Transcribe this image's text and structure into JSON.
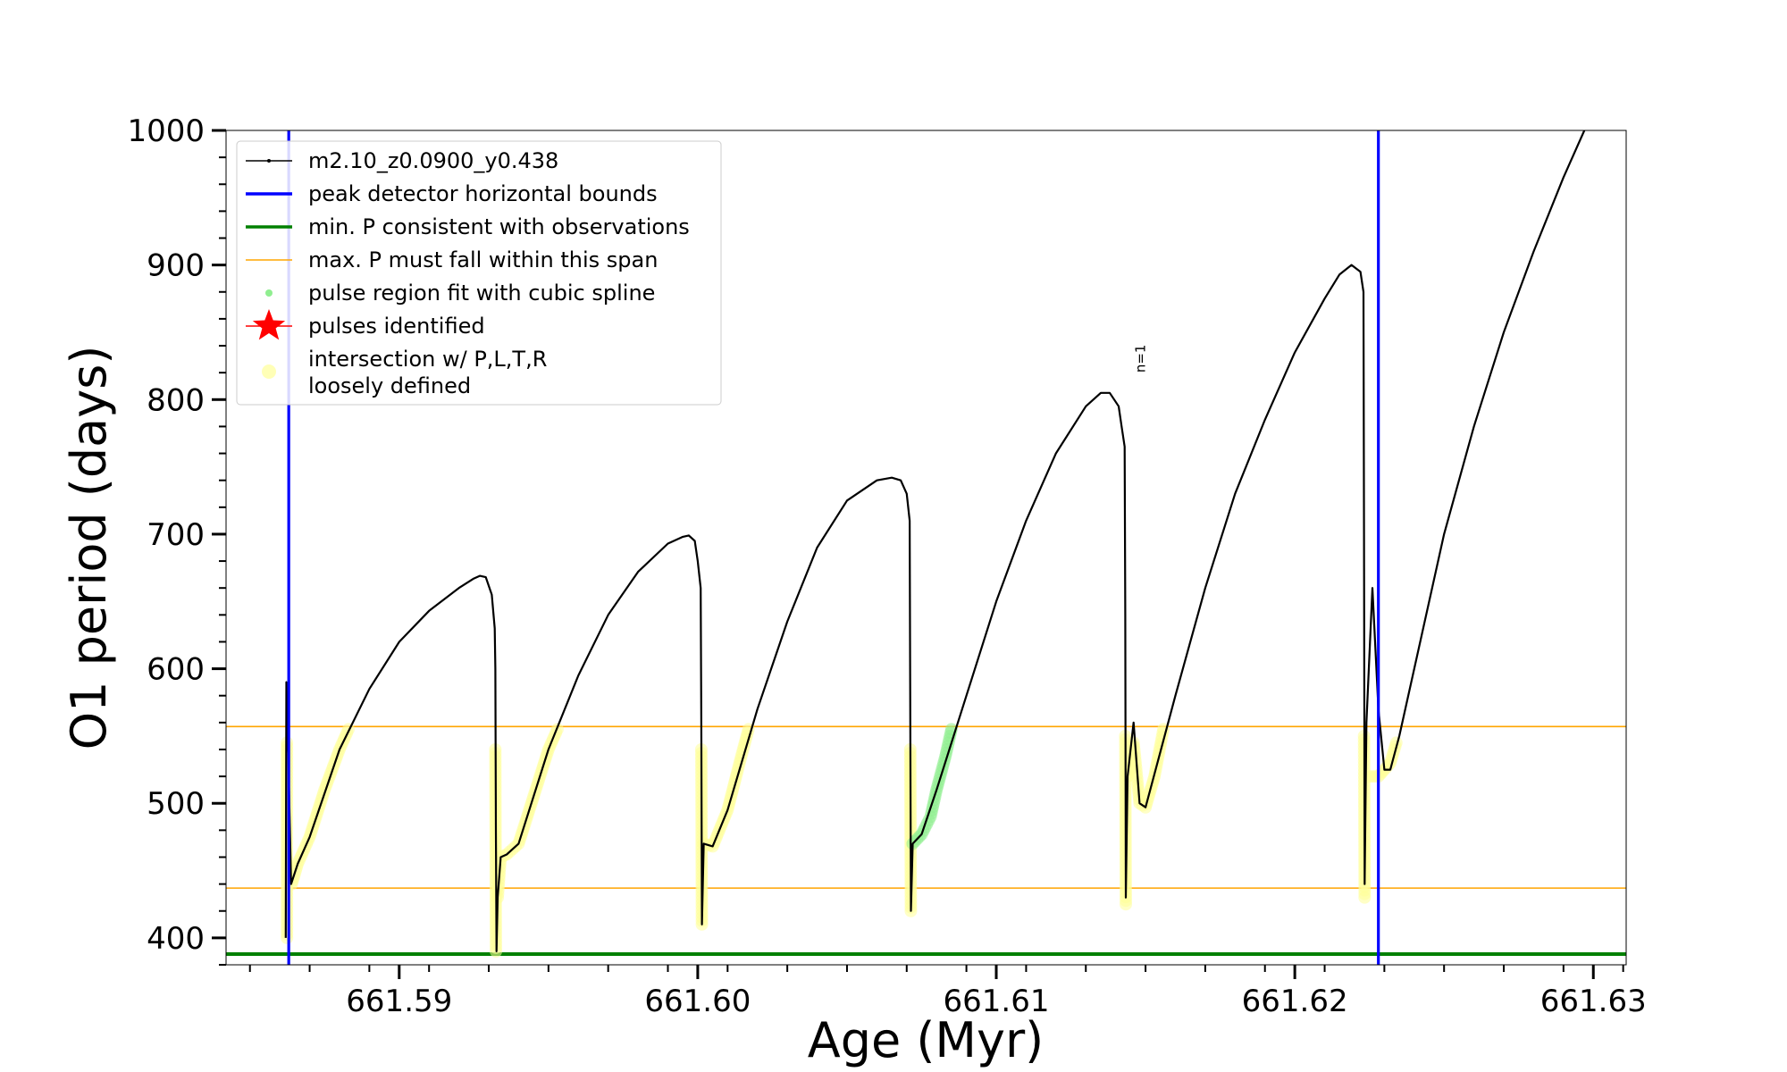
{
  "chart_data": {
    "type": "line",
    "xlabel": "Age (Myr)",
    "ylabel": "O1 period (days)",
    "xlim": [
      661.5842,
      661.6311
    ],
    "ylim": [
      380,
      1000
    ],
    "x_ticks": [
      661.59,
      661.6,
      661.61,
      661.62,
      661.63
    ],
    "x_tick_labels": [
      "661.59",
      "661.60",
      "661.61",
      "661.62",
      "661.63"
    ],
    "y_ticks": [
      400,
      500,
      600,
      700,
      800,
      900,
      1000
    ],
    "y_tick_labels": [
      "400",
      "500",
      "600",
      "700",
      "800",
      "900",
      "1000"
    ],
    "grid": false,
    "legend_location": "upper left",
    "legend": [
      {
        "label": "m2.10_z0.0900_y0.438",
        "kind": "line-marker",
        "color": "#000000"
      },
      {
        "label": "peak detector horizontal bounds",
        "kind": "line",
        "color": "#0000ff"
      },
      {
        "label": "min. P consistent with observations",
        "kind": "line",
        "color": "#008000"
      },
      {
        "label": "max. P must fall within this span",
        "kind": "thin-line",
        "color": "#ffa500"
      },
      {
        "label": "pulse region fit with cubic spline",
        "kind": "dot",
        "color": "#90ee90"
      },
      {
        "label": "pulses identified",
        "kind": "star",
        "color": "#ff0000"
      },
      {
        "label": "intersection w/ P,L,T,R",
        "label2": "loosely defined",
        "kind": "circle",
        "color": "#ffff99"
      }
    ],
    "vertical_lines": {
      "x": [
        661.5863,
        661.6228
      ],
      "color": "#0000ff"
    },
    "horizontal_lines": [
      {
        "y": 388,
        "color": "#008000"
      },
      {
        "y": 437,
        "color": "#ffa500"
      },
      {
        "y": 557,
        "color": "#ffa500"
      }
    ],
    "annotation": {
      "text": "n=1",
      "x": 661.6148,
      "y": 820
    },
    "series": [
      {
        "color": "#000000",
        "points": [
          [
            661.5862,
            400
          ],
          [
            661.58622,
            590
          ],
          [
            661.58628,
            540
          ],
          [
            661.58638,
            440
          ],
          [
            661.5866,
            455
          ],
          [
            661.587,
            475
          ],
          [
            661.588,
            540
          ],
          [
            661.589,
            585
          ],
          [
            661.59,
            620
          ],
          [
            661.591,
            643
          ],
          [
            661.592,
            660
          ],
          [
            661.5925,
            667
          ],
          [
            661.5927,
            669
          ],
          [
            661.5929,
            668
          ],
          [
            661.5931,
            655
          ],
          [
            661.5932,
            630
          ],
          [
            661.59322,
            600
          ],
          [
            661.59324,
            480
          ],
          [
            661.59326,
            390
          ],
          [
            661.5933,
            430
          ],
          [
            661.5934,
            460
          ],
          [
            661.5936,
            462
          ],
          [
            661.594,
            470
          ],
          [
            661.595,
            540
          ],
          [
            661.596,
            595
          ],
          [
            661.597,
            640
          ],
          [
            661.598,
            672
          ],
          [
            661.599,
            693
          ],
          [
            661.5995,
            698
          ],
          [
            661.5997,
            699
          ],
          [
            661.5999,
            695
          ],
          [
            661.6,
            680
          ],
          [
            661.6001,
            660
          ],
          [
            661.60012,
            560
          ],
          [
            661.60014,
            410
          ],
          [
            661.6002,
            470
          ],
          [
            661.6005,
            468
          ],
          [
            661.601,
            495
          ],
          [
            661.602,
            570
          ],
          [
            661.603,
            635
          ],
          [
            661.604,
            690
          ],
          [
            661.605,
            725
          ],
          [
            661.606,
            740
          ],
          [
            661.6065,
            742
          ],
          [
            661.6068,
            740
          ],
          [
            661.607,
            730
          ],
          [
            661.6071,
            710
          ],
          [
            661.60712,
            560
          ],
          [
            661.60714,
            420
          ],
          [
            661.6072,
            470
          ],
          [
            661.6075,
            477
          ],
          [
            661.608,
            510
          ],
          [
            661.609,
            580
          ],
          [
            661.61,
            650
          ],
          [
            661.611,
            710
          ],
          [
            661.612,
            760
          ],
          [
            661.613,
            795
          ],
          [
            661.6135,
            805
          ],
          [
            661.6138,
            805
          ],
          [
            661.6141,
            795
          ],
          [
            661.6142,
            780
          ],
          [
            661.6143,
            765
          ],
          [
            661.61432,
            640
          ],
          [
            661.61434,
            430
          ],
          [
            661.6144,
            520
          ],
          [
            661.6146,
            560
          ],
          [
            661.6148,
            500
          ],
          [
            661.615,
            497
          ],
          [
            661.616,
            580
          ],
          [
            661.617,
            660
          ],
          [
            661.618,
            730
          ],
          [
            661.619,
            785
          ],
          [
            661.62,
            835
          ],
          [
            661.621,
            875
          ],
          [
            661.6215,
            893
          ],
          [
            661.6219,
            900
          ],
          [
            661.6222,
            895
          ],
          [
            661.6223,
            880
          ],
          [
            661.62232,
            700
          ],
          [
            661.62234,
            440
          ],
          [
            661.6224,
            560
          ],
          [
            661.6226,
            660
          ],
          [
            661.6228,
            570
          ],
          [
            661.623,
            525
          ],
          [
            661.6232,
            525
          ],
          [
            661.6235,
            550
          ],
          [
            661.624,
            600
          ],
          [
            661.625,
            700
          ],
          [
            661.626,
            780
          ],
          [
            661.627,
            850
          ],
          [
            661.628,
            910
          ],
          [
            661.629,
            965
          ],
          [
            661.6297,
            1000
          ]
        ]
      },
      {
        "name": "intersection w/ P,L,T,R loosely defined",
        "color": "#ffff99",
        "segments": [
          [
            [
              661.58624,
              545
            ],
            [
              661.58624,
              400
            ]
          ],
          [
            [
              661.5864,
              440
            ],
            [
              661.5866,
              455
            ],
            [
              661.587,
              475
            ],
            [
              661.5875,
              510
            ],
            [
              661.588,
              540
            ],
            [
              661.5883,
              555
            ]
          ],
          [
            [
              661.59322,
              540
            ],
            [
              661.59324,
              390
            ]
          ],
          [
            [
              661.5933,
              430
            ],
            [
              661.5934,
              460
            ],
            [
              661.5936,
              462
            ],
            [
              661.594,
              470
            ],
            [
              661.5945,
              505
            ],
            [
              661.595,
              540
            ],
            [
              661.5953,
              555
            ]
          ],
          [
            [
              661.60012,
              540
            ],
            [
              661.60014,
              410
            ]
          ],
          [
            [
              661.6002,
              470
            ],
            [
              661.6005,
              468
            ],
            [
              661.601,
              495
            ],
            [
              661.6014,
              530
            ],
            [
              661.6017,
              555
            ]
          ],
          [
            [
              661.60712,
              540
            ],
            [
              661.60714,
              420
            ]
          ],
          [
            [
              661.61432,
              550
            ],
            [
              661.61434,
              425
            ]
          ],
          [
            [
              661.6144,
              520
            ],
            [
              661.6146,
              545
            ],
            [
              661.6148,
              500
            ],
            [
              661.615,
              497
            ],
            [
              661.6153,
              520
            ],
            [
              661.6156,
              555
            ]
          ],
          [
            [
              661.62232,
              550
            ],
            [
              661.62234,
              430
            ]
          ],
          [
            [
              661.6225,
              520
            ],
            [
              661.6228,
              520
            ],
            [
              661.623,
              525
            ],
            [
              661.6232,
              530
            ],
            [
              661.6234,
              545
            ]
          ]
        ]
      },
      {
        "name": "pulse region fit with cubic spline",
        "color": "#90ee90",
        "segments": [
          [
            [
              661.6072,
              470
            ],
            [
              661.6075,
              477
            ],
            [
              661.6078,
              490
            ],
            [
              661.608,
              510
            ],
            [
              661.6083,
              535
            ],
            [
              661.6085,
              555
            ]
          ]
        ]
      }
    ]
  }
}
